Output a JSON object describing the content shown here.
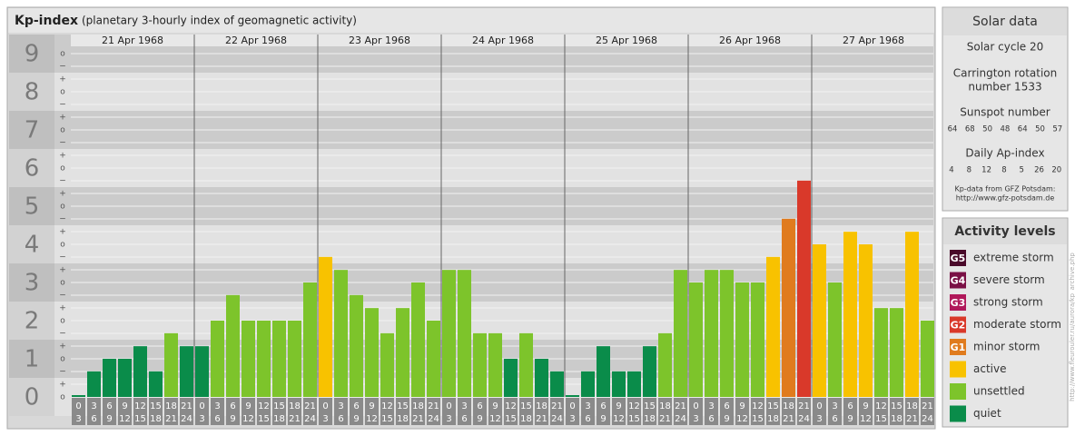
{
  "chart_data": {
    "type": "bar",
    "title": "Kp-index",
    "subtitle": "(planetary 3-hourly index of geomagnetic activity)",
    "days": [
      "21 Apr 1968",
      "22 Apr 1968",
      "23 Apr 1968",
      "24 Apr 1968",
      "25 Apr 1968",
      "26 Apr 1968",
      "27 Apr 1968"
    ],
    "hours_start": [
      "0",
      "3",
      "6",
      "9",
      "12",
      "15",
      "18",
      "21"
    ],
    "hours_end": [
      "3",
      "6",
      "9",
      "12",
      "15",
      "18",
      "21",
      "24"
    ],
    "values": [
      0,
      0.67,
      1,
      1,
      1.33,
      0.67,
      1.67,
      1.33,
      1.33,
      2,
      2.67,
      2,
      2,
      2,
      2,
      3,
      3.67,
      3.33,
      2.67,
      2.33,
      1.67,
      2.33,
      3,
      2,
      3.33,
      3.33,
      1.67,
      1.67,
      1,
      1.67,
      1,
      0.67,
      0,
      0.67,
      1.33,
      0.67,
      0.67,
      1.33,
      1.67,
      3.33,
      3,
      3.33,
      3.33,
      3,
      3,
      3.67,
      4.67,
      5.67,
      4,
      3,
      4.33,
      4,
      2.33,
      2.33,
      4.33,
      2
    ],
    "colors": [
      "#0a8c4a",
      "#0a8c4a",
      "#0a8c4a",
      "#0a8c4a",
      "#0a8c4a",
      "#0a8c4a",
      "#7dc42b",
      "#0a8c4a",
      "#0a8c4a",
      "#7dc42b",
      "#7dc42b",
      "#7dc42b",
      "#7dc42b",
      "#7dc42b",
      "#7dc42b",
      "#7dc42b",
      "#f8c200",
      "#7dc42b",
      "#7dc42b",
      "#7dc42b",
      "#7dc42b",
      "#7dc42b",
      "#7dc42b",
      "#7dc42b",
      "#7dc42b",
      "#7dc42b",
      "#7dc42b",
      "#7dc42b",
      "#0a8c4a",
      "#7dc42b",
      "#0a8c4a",
      "#0a8c4a",
      "#0a8c4a",
      "#0a8c4a",
      "#0a8c4a",
      "#0a8c4a",
      "#0a8c4a",
      "#0a8c4a",
      "#7dc42b",
      "#7dc42b",
      "#7dc42b",
      "#7dc42b",
      "#7dc42b",
      "#7dc42b",
      "#7dc42b",
      "#f8c200",
      "#e07b1e",
      "#d9392a",
      "#f8c200",
      "#7dc42b",
      "#f8c200",
      "#f8c200",
      "#7dc42b",
      "#7dc42b",
      "#f8c200",
      "#7dc42b"
    ],
    "ylim": [
      0,
      9.5
    ],
    "yticks": [
      0,
      1,
      2,
      3,
      4,
      5,
      6,
      7,
      8,
      9
    ],
    "minor_yticks": [
      {
        "value": 0,
        "label": "o"
      },
      {
        "value": 0.333,
        "label": "+"
      },
      {
        "value": 0.667,
        "label": "−"
      },
      {
        "value": 1,
        "label": "o"
      },
      {
        "value": 1.333,
        "label": "+"
      },
      {
        "value": 1.667,
        "label": "−"
      },
      {
        "value": 2,
        "label": "o"
      },
      {
        "value": 2.333,
        "label": "+"
      },
      {
        "value": 2.667,
        "label": "−"
      },
      {
        "value": 3,
        "label": "o"
      },
      {
        "value": 3.333,
        "label": "+"
      },
      {
        "value": 3.667,
        "label": "−"
      },
      {
        "value": 4,
        "label": "o"
      },
      {
        "value": 4.333,
        "label": "+"
      },
      {
        "value": 4.667,
        "label": "−"
      },
      {
        "value": 5,
        "label": "o"
      },
      {
        "value": 5.333,
        "label": "+"
      },
      {
        "value": 5.667,
        "label": "−"
      },
      {
        "value": 6,
        "label": "o"
      },
      {
        "value": 6.333,
        "label": "+"
      },
      {
        "value": 6.667,
        "label": "−"
      },
      {
        "value": 7,
        "label": "o"
      },
      {
        "value": 7.333,
        "label": "+"
      },
      {
        "value": 7.667,
        "label": "−"
      },
      {
        "value": 8,
        "label": "o"
      },
      {
        "value": 8.333,
        "label": "+"
      },
      {
        "value": 8.667,
        "label": "−"
      },
      {
        "value": 9,
        "label": "o"
      }
    ]
  },
  "solar": {
    "title": "Solar data",
    "cycle": "Solar cycle 20",
    "carrington_1": "Carrington rotation",
    "carrington_2": "number 1533",
    "sunspot_title": "Sunspot number",
    "sunspot": [
      "64",
      "68",
      "50",
      "48",
      "64",
      "50",
      "57"
    ],
    "ap_title": "Daily Ap-index",
    "ap": [
      "4",
      "8",
      "12",
      "8",
      "5",
      "26",
      "20"
    ],
    "source_1": "Kp-data from GFZ Potsdam:",
    "source_2": "http://www.gfz-potsdam.de"
  },
  "activity": {
    "title": "Activity levels",
    "levels": [
      {
        "badge": "G5",
        "name": "extreme storm",
        "color": "#4a0a2a"
      },
      {
        "badge": "G4",
        "name": "severe storm",
        "color": "#7a1045"
      },
      {
        "badge": "G3",
        "name": "strong storm",
        "color": "#b0185a"
      },
      {
        "badge": "G2",
        "name": "moderate storm",
        "color": "#d9392a"
      },
      {
        "badge": "G1",
        "name": "minor storm",
        "color": "#e07b1e"
      },
      {
        "name": "active",
        "color": "#f8c200"
      },
      {
        "name": "unsettled",
        "color": "#7dc42b"
      },
      {
        "name": "quiet",
        "color": "#0a8c4a"
      }
    ]
  },
  "watermark": "http://www.fleurouler.ru/aurora/kp_archive.php"
}
